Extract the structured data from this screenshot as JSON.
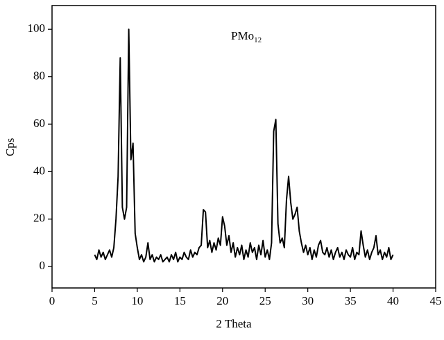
{
  "chart_data": {
    "type": "line",
    "annotation": {
      "text": "PMo",
      "subscript": "12"
    },
    "x_label": "2 Theta",
    "y_label": "Cps",
    "x": [
      5,
      5.25,
      5.5,
      5.75,
      6,
      6.25,
      6.5,
      6.75,
      7,
      7.25,
      7.5,
      7.75,
      8,
      8.25,
      8.5,
      8.75,
      9,
      9.25,
      9.5,
      9.75,
      10,
      10.25,
      10.5,
      10.75,
      11,
      11.25,
      11.5,
      11.75,
      12,
      12.25,
      12.5,
      12.75,
      13,
      13.25,
      13.5,
      13.75,
      14,
      14.25,
      14.5,
      14.75,
      15,
      15.25,
      15.5,
      15.75,
      16,
      16.25,
      16.5,
      16.75,
      17,
      17.25,
      17.5,
      17.75,
      18,
      18.25,
      18.5,
      18.75,
      19,
      19.25,
      19.5,
      19.75,
      20,
      20.25,
      20.5,
      20.75,
      21,
      21.25,
      21.5,
      21.75,
      22,
      22.25,
      22.5,
      22.75,
      23,
      23.25,
      23.5,
      23.75,
      24,
      24.25,
      24.5,
      24.75,
      25,
      25.25,
      25.5,
      25.75,
      26,
      26.25,
      26.5,
      26.75,
      27,
      27.25,
      27.5,
      27.75,
      28,
      28.25,
      28.5,
      28.75,
      29,
      29.25,
      29.5,
      29.75,
      30,
      30.25,
      30.5,
      30.75,
      31,
      31.25,
      31.5,
      31.75,
      32,
      32.25,
      32.5,
      32.75,
      33,
      33.25,
      33.5,
      33.75,
      34,
      34.25,
      34.5,
      34.75,
      35,
      35.25,
      35.5,
      35.75,
      36,
      36.25,
      36.5,
      36.75,
      37,
      37.25,
      37.5,
      37.75,
      38,
      38.25,
      38.5,
      38.75,
      39,
      39.25,
      39.5,
      39.75,
      40
    ],
    "series": [
      {
        "name": "PMo12",
        "color": "#000000",
        "values": [
          5,
          3,
          7,
          4,
          6,
          3,
          5,
          7,
          4,
          8,
          20,
          38,
          88,
          25,
          20,
          25,
          100,
          45,
          52,
          14,
          8,
          3,
          5,
          2,
          4,
          10,
          3,
          5,
          2,
          4,
          3,
          5,
          2,
          3,
          4,
          2,
          5,
          3,
          6,
          2,
          4,
          3,
          6,
          4,
          3,
          7,
          4,
          6,
          5,
          8,
          9,
          24,
          23,
          8,
          11,
          6,
          10,
          7,
          12,
          9,
          21,
          17,
          9,
          13,
          6,
          10,
          4,
          8,
          5,
          9,
          3,
          7,
          4,
          10,
          6,
          8,
          3,
          9,
          5,
          11,
          4,
          7,
          3,
          10,
          57,
          62,
          18,
          10,
          12,
          8,
          28,
          38,
          27,
          20,
          22,
          25,
          15,
          10,
          6,
          9,
          5,
          8,
          3,
          7,
          4,
          9,
          11,
          6,
          5,
          8,
          4,
          7,
          3,
          6,
          8,
          4,
          6,
          3,
          7,
          5,
          4,
          8,
          3,
          6,
          5,
          15,
          9,
          4,
          7,
          3,
          6,
          8,
          13,
          5,
          7,
          3,
          6,
          4,
          8,
          3,
          5
        ]
      }
    ],
    "xlim": [
      0,
      45
    ],
    "xticks": [
      0,
      5,
      10,
      15,
      20,
      25,
      30,
      35,
      40,
      45
    ],
    "ylim": [
      -9,
      110
    ],
    "yticks": [
      0,
      20,
      40,
      60,
      80,
      100
    ]
  }
}
